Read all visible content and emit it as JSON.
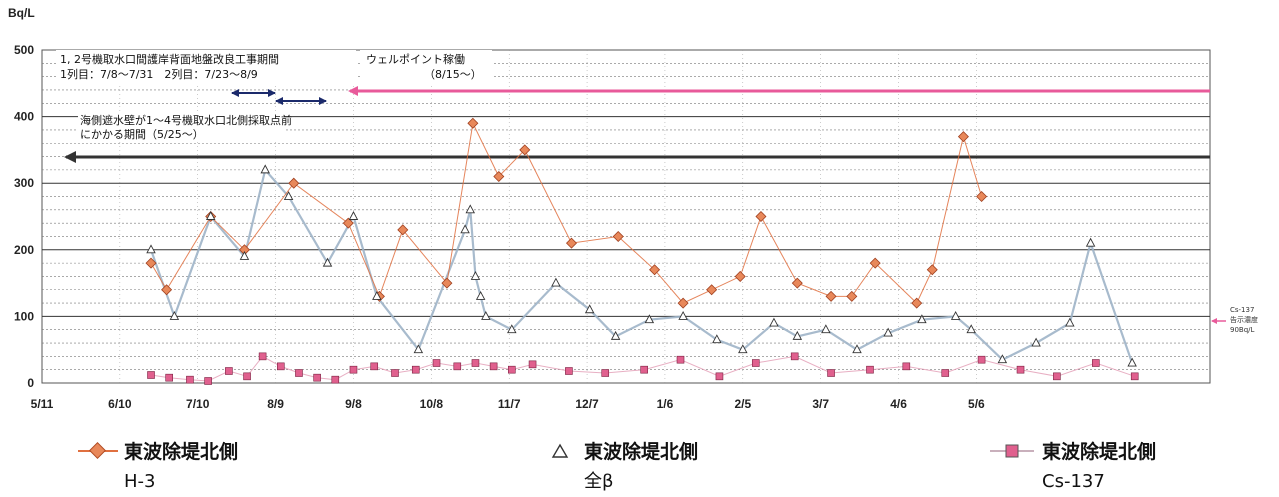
{
  "chart_data": {
    "type": "line",
    "ylabel": "Bq/L",
    "ylim": [
      0,
      500
    ],
    "y_ticks": [
      0,
      100,
      200,
      300,
      400,
      500
    ],
    "x_ticks": [
      "5/11",
      "6/10",
      "7/10",
      "8/9",
      "9/8",
      "10/8",
      "11/7",
      "12/7",
      "1/6",
      "2/5",
      "3/7",
      "4/6",
      "5/6"
    ],
    "grid": true,
    "legend_position": "bottom",
    "annotations": {
      "construction_line1": "1, 2号機取水口間護岸背面地盤改良工事期間",
      "construction_line2": "1列目：7/8～7/31　2列目：7/23～8/9",
      "seawall_line1": "海側遮水壁が1～4号機取水口北側採取点前",
      "seawall_line2": "にかかる期間（5/25～）",
      "wellpoint_line1": "ウェルポイント稼働",
      "wellpoint_line2": "（8/15～）",
      "cs_limit_line1": "Cs-137",
      "cs_limit_line2": "告示濃度",
      "cs_limit_line3": "90Bq/L"
    },
    "series": [
      {
        "name": "東波除堤北側",
        "sub": "H-3",
        "color": "#e07040",
        "x_days": [
          42,
          48,
          65,
          78,
          97,
          118,
          130,
          139,
          156,
          166,
          176,
          186,
          204,
          222,
          236,
          247,
          258,
          269,
          277,
          291,
          304,
          312,
          321,
          337,
          343,
          355,
          362
        ],
        "values": [
          180,
          140,
          250,
          200,
          300,
          240,
          130,
          230,
          150,
          390,
          310,
          350,
          210,
          220,
          170,
          120,
          140,
          160,
          250,
          150,
          130,
          130,
          180,
          120,
          170,
          370,
          280
        ]
      },
      {
        "name": "東波除堤北側",
        "sub": "全β",
        "color": "#4a7ab0",
        "x_days": [
          42,
          51,
          65,
          78,
          86,
          95,
          110,
          120,
          129,
          145,
          163,
          165,
          167,
          169,
          171,
          181,
          198,
          211,
          221,
          234,
          247,
          260,
          270,
          282,
          291,
          302,
          314,
          326,
          339,
          352,
          358,
          370,
          383,
          396,
          404,
          420
        ],
        "values": [
          200,
          100,
          250,
          190,
          320,
          280,
          180,
          250,
          130,
          50,
          230,
          260,
          160,
          130,
          100,
          80,
          150,
          110,
          70,
          95,
          100,
          65,
          50,
          90,
          70,
          80,
          50,
          75,
          95,
          100,
          80,
          35,
          60,
          90,
          210,
          30
        ]
      },
      {
        "name": "東波除堤北側",
        "sub": "Cs-137",
        "color": "#d04878",
        "x_days": [
          42,
          49,
          57,
          64,
          72,
          79,
          85,
          92,
          99,
          106,
          113,
          120,
          128,
          136,
          144,
          152,
          160,
          167,
          174,
          181,
          189,
          203,
          217,
          232,
          246,
          261,
          275,
          290,
          304,
          319,
          333,
          348,
          362,
          377,
          391,
          406,
          421
        ],
        "values": [
          12,
          8,
          5,
          3,
          18,
          10,
          40,
          25,
          15,
          8,
          5,
          20,
          25,
          15,
          20,
          30,
          25,
          30,
          25,
          20,
          28,
          18,
          15,
          20,
          35,
          10,
          30,
          40,
          15,
          20,
          25,
          15,
          35,
          20,
          10,
          30,
          10
        ]
      }
    ]
  }
}
